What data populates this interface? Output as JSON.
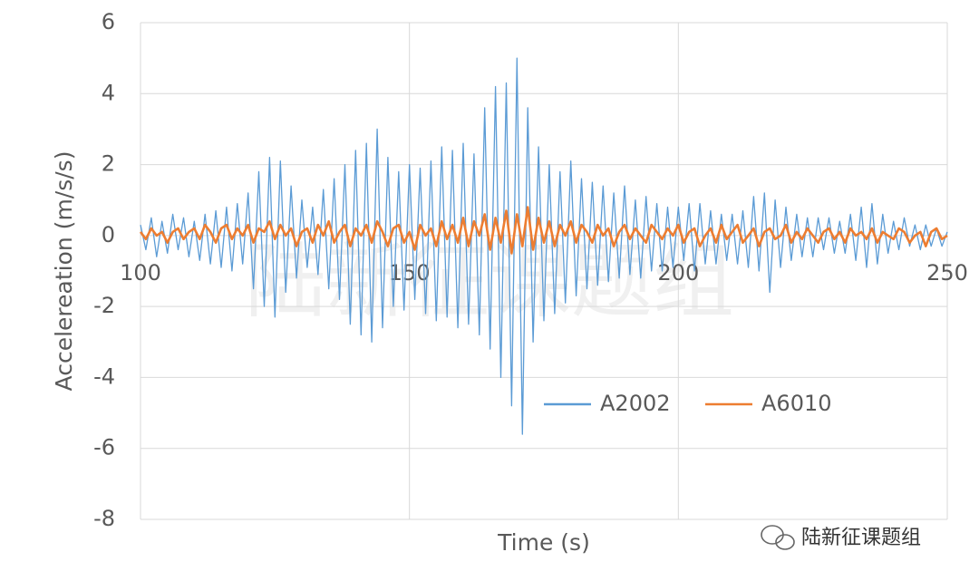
{
  "chart_data": {
    "type": "line",
    "x_label": "Time (s)",
    "y_label": "Accelereation (m/s/s)",
    "watermark": "陆新征课题组",
    "brand": "陆新征课题组",
    "x": [
      100,
      101,
      102,
      103,
      104,
      105,
      106,
      107,
      108,
      109,
      110,
      111,
      112,
      113,
      114,
      115,
      116,
      117,
      118,
      119,
      120,
      121,
      122,
      123,
      124,
      125,
      126,
      127,
      128,
      129,
      130,
      131,
      132,
      133,
      134,
      135,
      136,
      137,
      138,
      139,
      140,
      141,
      142,
      143,
      144,
      145,
      146,
      147,
      148,
      149,
      150,
      151,
      152,
      153,
      154,
      155,
      156,
      157,
      158,
      159,
      160,
      161,
      162,
      163,
      164,
      165,
      166,
      167,
      168,
      169,
      170,
      171,
      172,
      173,
      174,
      175,
      176,
      177,
      178,
      179,
      180,
      181,
      182,
      183,
      184,
      185,
      186,
      187,
      188,
      189,
      190,
      191,
      192,
      193,
      194,
      195,
      196,
      197,
      198,
      199,
      200,
      201,
      202,
      203,
      204,
      205,
      206,
      207,
      208,
      209,
      210,
      211,
      212,
      213,
      214,
      215,
      216,
      217,
      218,
      219,
      220,
      221,
      222,
      223,
      224,
      225,
      226,
      227,
      228,
      229,
      230,
      231,
      232,
      233,
      234,
      235,
      236,
      237,
      238,
      239,
      240,
      241,
      242,
      243,
      244,
      245,
      246,
      247,
      248,
      249,
      250
    ],
    "series": [
      {
        "name": "A2002",
        "color": "#5b9bd5",
        "values": [
          0.3,
          -0.4,
          0.5,
          -0.6,
          0.4,
          -0.5,
          0.6,
          -0.4,
          0.5,
          -0.6,
          0.4,
          -0.7,
          0.6,
          -0.8,
          0.7,
          -0.9,
          0.8,
          -1.0,
          0.9,
          -0.8,
          1.2,
          -1.5,
          1.8,
          -2.0,
          2.2,
          -2.3,
          2.1,
          -1.6,
          1.4,
          -1.2,
          1.0,
          -0.9,
          0.8,
          -1.1,
          1.3,
          -1.5,
          1.6,
          -1.8,
          2.0,
          -2.5,
          2.4,
          -2.8,
          2.6,
          -3.0,
          3.0,
          -2.6,
          2.2,
          -2.0,
          1.8,
          -2.1,
          2.0,
          -1.8,
          1.9,
          -2.2,
          2.1,
          -2.4,
          2.5,
          -2.3,
          2.4,
          -2.6,
          2.6,
          -2.5,
          2.3,
          -2.8,
          3.6,
          -3.2,
          4.2,
          -4.0,
          4.3,
          -4.8,
          5.0,
          -5.6,
          3.6,
          -3.0,
          2.5,
          -2.4,
          2.0,
          -2.2,
          1.8,
          -1.9,
          2.1,
          -1.7,
          1.6,
          -1.5,
          1.5,
          -1.4,
          1.4,
          -1.3,
          1.2,
          -1.2,
          1.4,
          -1.1,
          1.0,
          -1.2,
          1.1,
          -1.0,
          0.9,
          -1.0,
          0.8,
          -0.9,
          0.8,
          -0.7,
          0.9,
          -1.0,
          0.9,
          -0.8,
          0.7,
          -0.8,
          0.6,
          -0.7,
          0.6,
          -0.8,
          0.7,
          -0.9,
          1.1,
          -1.0,
          1.2,
          -1.6,
          1.0,
          -0.9,
          0.8,
          -0.7,
          0.6,
          -0.6,
          0.5,
          -0.6,
          0.5,
          -0.4,
          0.5,
          -0.5,
          0.4,
          -0.5,
          0.6,
          -0.7,
          0.8,
          -0.9,
          0.9,
          -0.8,
          0.6,
          -0.5,
          0.4,
          -0.4,
          0.5,
          -0.3,
          0.3,
          -0.4,
          0.3,
          -0.3,
          0.2,
          -0.3,
          0.1
        ]
      },
      {
        "name": "A6010",
        "color": "#ed7d31",
        "values": [
          0.1,
          -0.1,
          0.2,
          0.0,
          0.1,
          -0.2,
          0.1,
          0.2,
          -0.1,
          0.1,
          0.2,
          -0.1,
          0.3,
          0.1,
          -0.2,
          0.2,
          0.3,
          -0.1,
          0.2,
          0.0,
          0.3,
          -0.2,
          0.2,
          0.1,
          0.4,
          -0.1,
          0.3,
          0.0,
          0.2,
          -0.3,
          0.1,
          0.2,
          -0.2,
          0.3,
          0.0,
          0.4,
          -0.2,
          0.1,
          0.3,
          -0.3,
          0.2,
          0.0,
          0.3,
          -0.2,
          0.4,
          0.1,
          -0.3,
          0.2,
          0.3,
          -0.2,
          0.1,
          -0.4,
          0.3,
          0.0,
          0.2,
          -0.3,
          0.4,
          -0.1,
          0.3,
          -0.2,
          0.5,
          -0.3,
          0.4,
          0.0,
          0.6,
          -0.4,
          0.5,
          -0.2,
          0.7,
          -0.5,
          0.6,
          -0.3,
          0.8,
          -0.4,
          0.5,
          -0.2,
          0.4,
          -0.3,
          0.3,
          0.0,
          0.4,
          -0.2,
          0.3,
          0.1,
          -0.2,
          0.3,
          0.0,
          0.2,
          -0.3,
          0.1,
          0.3,
          -0.1,
          0.2,
          0.0,
          -0.2,
          0.3,
          0.1,
          -0.1,
          0.2,
          0.0,
          0.3,
          -0.2,
          0.1,
          0.2,
          -0.3,
          0.0,
          0.2,
          -0.2,
          0.3,
          -0.1,
          0.1,
          0.3,
          -0.2,
          0.0,
          0.2,
          -0.3,
          0.1,
          0.2,
          -0.1,
          0.0,
          0.3,
          -0.2,
          0.1,
          -0.1,
          0.2,
          0.0,
          -0.2,
          0.1,
          0.2,
          -0.1,
          0.1,
          -0.2,
          0.2,
          0.0,
          0.1,
          -0.1,
          0.2,
          -0.2,
          0.1,
          0.0,
          -0.1,
          0.2,
          0.1,
          -0.2,
          0.0,
          0.1,
          -0.3,
          0.1,
          0.2,
          -0.1,
          0.0
        ]
      }
    ],
    "xlim": [
      100,
      250
    ],
    "ylim": [
      -8,
      6
    ],
    "xticks": [
      100,
      150,
      200,
      250
    ],
    "yticks": [
      -8,
      -6,
      -4,
      -2,
      0,
      2,
      4,
      6
    ],
    "grid": true
  }
}
